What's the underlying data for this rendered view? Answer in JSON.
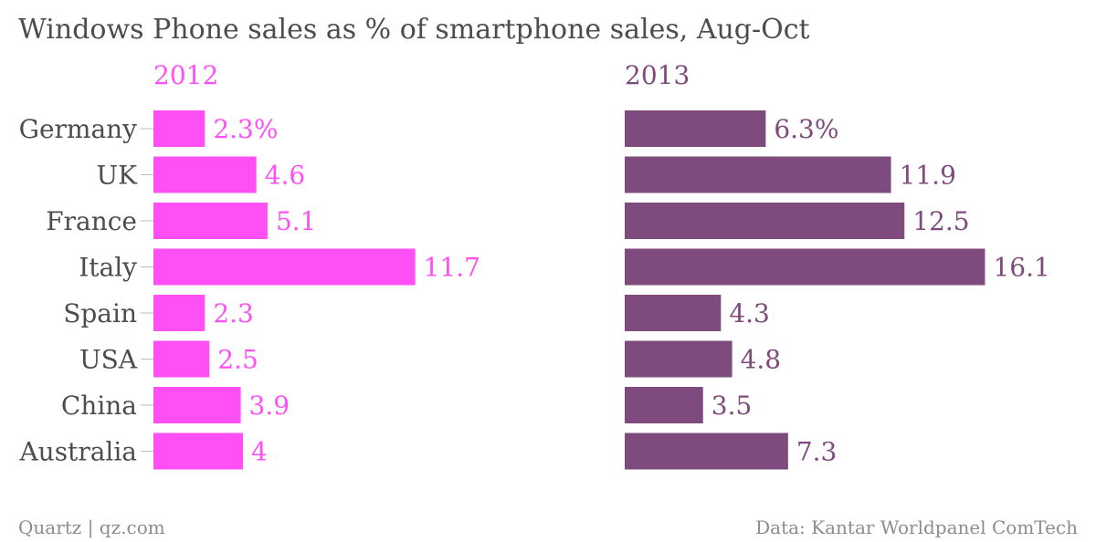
{
  "chart_data": {
    "type": "bar",
    "orientation": "horizontal",
    "title": "Windows Phone sales as % of smartphone sales, Aug-Oct",
    "categories": [
      "Germany",
      "UK",
      "France",
      "Italy",
      "Spain",
      "USA",
      "China",
      "Australia"
    ],
    "series": [
      {
        "name": "2012",
        "color": "#ff4ff5",
        "values": [
          2.3,
          4.6,
          5.1,
          11.7,
          2.3,
          2.5,
          3.9,
          4
        ],
        "labels": [
          "2.3%",
          "4.6",
          "5.1",
          "11.7",
          "2.3",
          "2.5",
          "3.9",
          "4"
        ]
      },
      {
        "name": "2013",
        "color": "#7f4a7d",
        "values": [
          6.3,
          11.9,
          12.5,
          16.1,
          4.3,
          4.8,
          3.5,
          7.3
        ],
        "labels": [
          "6.3%",
          "11.9",
          "12.5",
          "16.1",
          "4.3",
          "4.8",
          "3.5",
          "7.3"
        ]
      }
    ],
    "xlim": [
      0,
      16.1
    ],
    "grid": false,
    "legend": "none"
  },
  "footer": {
    "source_left": "Quartz | qz.com",
    "source_right": "Data: Kantar Worldpanel ComTech"
  }
}
